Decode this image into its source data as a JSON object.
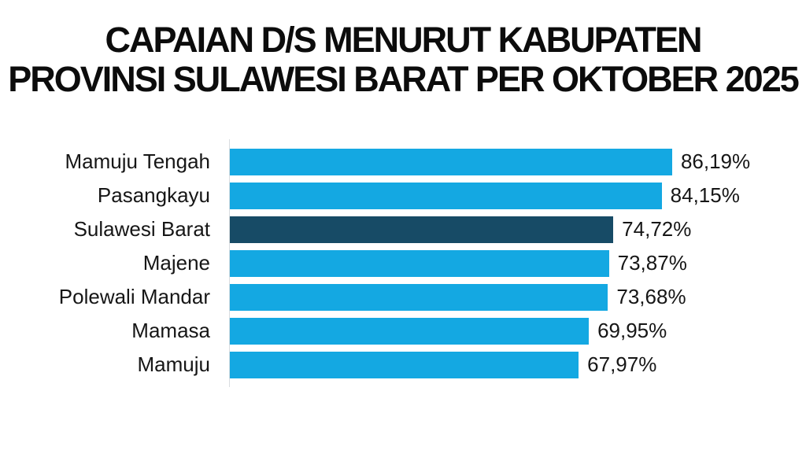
{
  "title": {
    "line1": "CAPAIAN D/S MENURUT KABUPATEN",
    "line2": "PROVINSI SULAWESI BARAT PER OKTOBER 2025"
  },
  "colors": {
    "bar": "#14a8e2",
    "highlight_bar": "#174b66",
    "axis_line": "#d9dde0",
    "title_text": "#0c0c0c",
    "label_text": "#161616",
    "background": "#ffffff"
  },
  "chart_data": {
    "type": "bar",
    "orientation": "horizontal",
    "title": "CAPAIAN D/S MENURUT KABUPATEN PROVINSI SULAWESI BARAT PER OKTOBER 2025",
    "xlabel": "",
    "ylabel": "",
    "xlim": [
      0,
      100
    ],
    "grid": false,
    "legend": false,
    "value_format": "percent-comma-decimal",
    "categories": [
      "Mamuju Tengah",
      "Pasangkayu",
      "Sulawesi Barat",
      "Majene",
      "Polewali Mandar",
      "Mamasa",
      "Mamuju"
    ],
    "values": [
      86.19,
      84.15,
      74.72,
      73.87,
      73.68,
      69.95,
      67.97
    ],
    "highlighted_category": "Sulawesi Barat",
    "rows": [
      {
        "label": "Mamuju Tengah",
        "value": 86.19,
        "value_label": "86,19%",
        "highlight": false
      },
      {
        "label": "Pasangkayu",
        "value": 84.15,
        "value_label": "84,15%",
        "highlight": false
      },
      {
        "label": "Sulawesi Barat",
        "value": 74.72,
        "value_label": "74,72%",
        "highlight": true
      },
      {
        "label": "Majene",
        "value": 73.87,
        "value_label": "73,87%",
        "highlight": false
      },
      {
        "label": "Polewali Mandar",
        "value": 73.68,
        "value_label": "73,68%",
        "highlight": false
      },
      {
        "label": "Mamasa",
        "value": 69.95,
        "value_label": "69,95%",
        "highlight": false
      },
      {
        "label": "Mamuju",
        "value": 67.97,
        "value_label": "67,97%",
        "highlight": false
      }
    ]
  }
}
